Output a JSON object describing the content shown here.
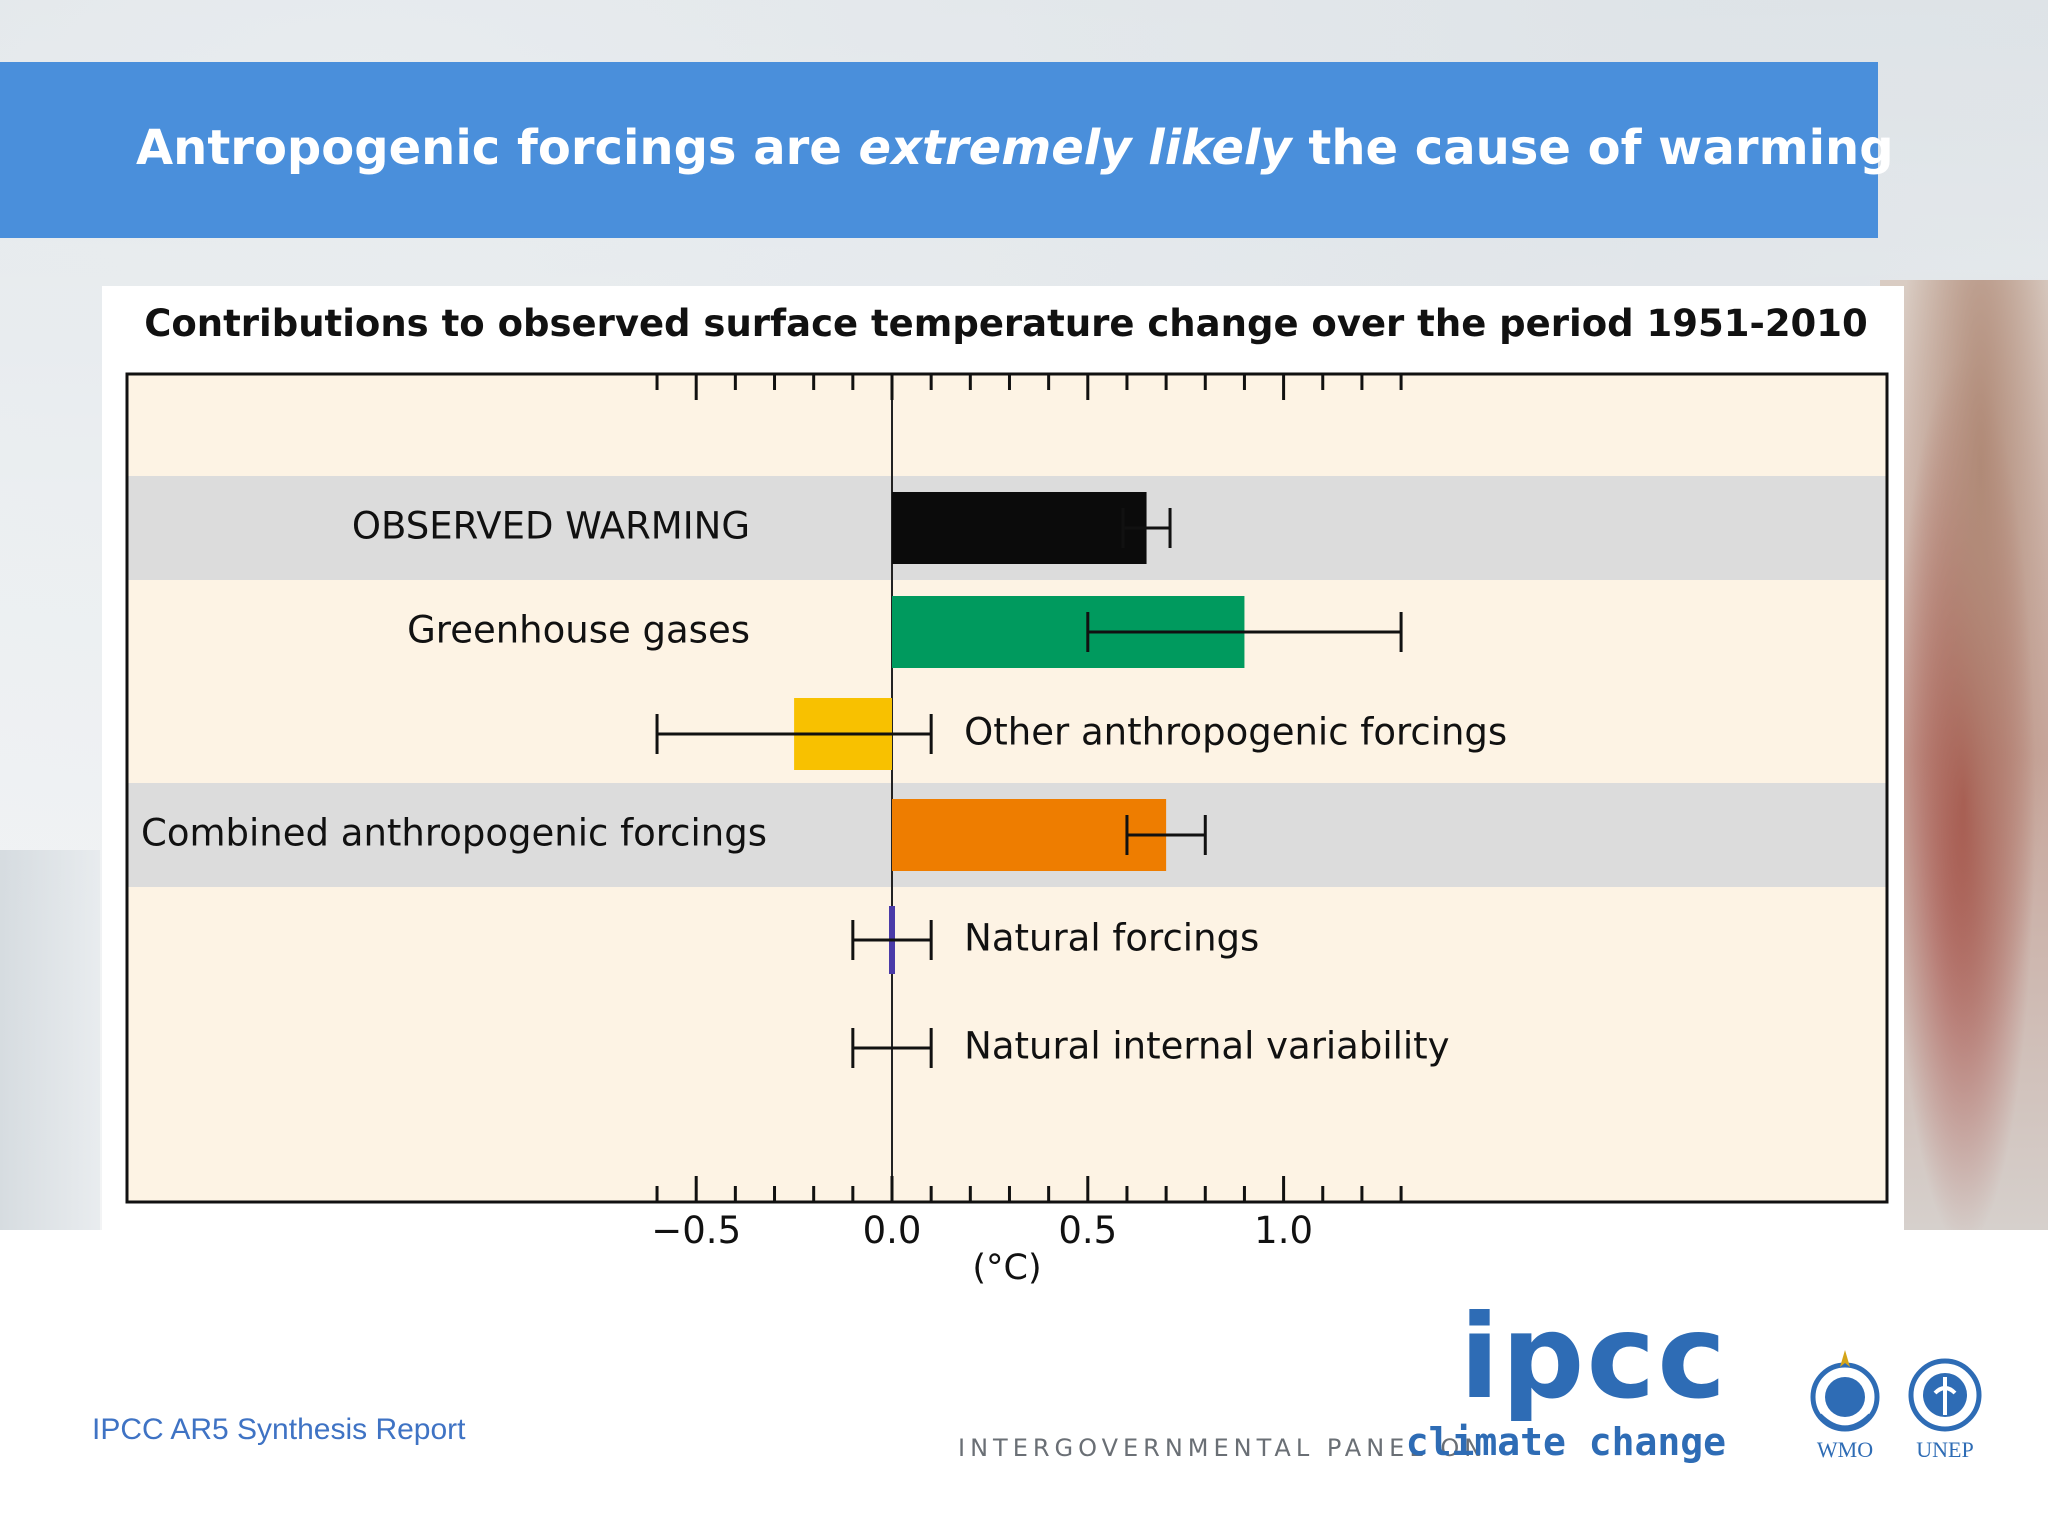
{
  "slide": {
    "title_pre": "Antropogenic forcings are ",
    "title_em": "extremely likely",
    "title_post": " the cause of warming",
    "footer": "IPCC AR5 Synthesis Report"
  },
  "logos": {
    "ipcc_word": "ipcc",
    "ipcc_tag_left": "INTERGOVERNMENTAL PANEL ON",
    "ipcc_tag_right": "climate change",
    "wmo": "WMO",
    "unep": "UNEP"
  },
  "chart_data": {
    "type": "bar",
    "orientation": "horizontal",
    "title": "Contributions to observed surface temperature change over the period 1951-2010",
    "xlabel": "(°C)",
    "xlim": [
      -0.85,
      1.4
    ],
    "xticks": [
      -0.5,
      0.0,
      0.5,
      1.0
    ],
    "xtick_labels": [
      "−0.5",
      "0.0",
      "0.5",
      "1.0"
    ],
    "minor_tick_step": 0.1,
    "grid": false,
    "colors": {
      "panel_bg": "#fdf3e4",
      "band_bg": "#dcdcdc",
      "observed": "#0b0b0b",
      "ghg": "#009a5e",
      "other": "#f8c100",
      "combined": "#ee7d00",
      "natural": "#4a3aa8"
    },
    "rows": [
      {
        "label": "OBSERVED WARMING",
        "value": 0.65,
        "err_low": 0.59,
        "err_high": 0.71,
        "label_side": "left",
        "band": true,
        "color_key": "observed"
      },
      {
        "label": "Greenhouse gases",
        "value": 0.9,
        "err_low": 0.5,
        "err_high": 1.3,
        "label_side": "left",
        "band": false,
        "color_key": "ghg"
      },
      {
        "label": "Other anthropogenic forcings",
        "value": -0.25,
        "err_low": -0.6,
        "err_high": 0.1,
        "label_side": "right",
        "band": false,
        "color_key": "other"
      },
      {
        "label": "Combined anthropogenic forcings",
        "value": 0.7,
        "err_low": 0.6,
        "err_high": 0.8,
        "label_side": "left",
        "band": true,
        "color_key": "combined"
      },
      {
        "label": "Natural forcings",
        "value": 0.0,
        "err_low": -0.1,
        "err_high": 0.1,
        "label_side": "right",
        "band": false,
        "color_key": "natural"
      },
      {
        "label": "Natural internal variability",
        "value": null,
        "err_low": -0.1,
        "err_high": 0.1,
        "label_side": "right",
        "band": false,
        "color_key": ""
      }
    ]
  }
}
